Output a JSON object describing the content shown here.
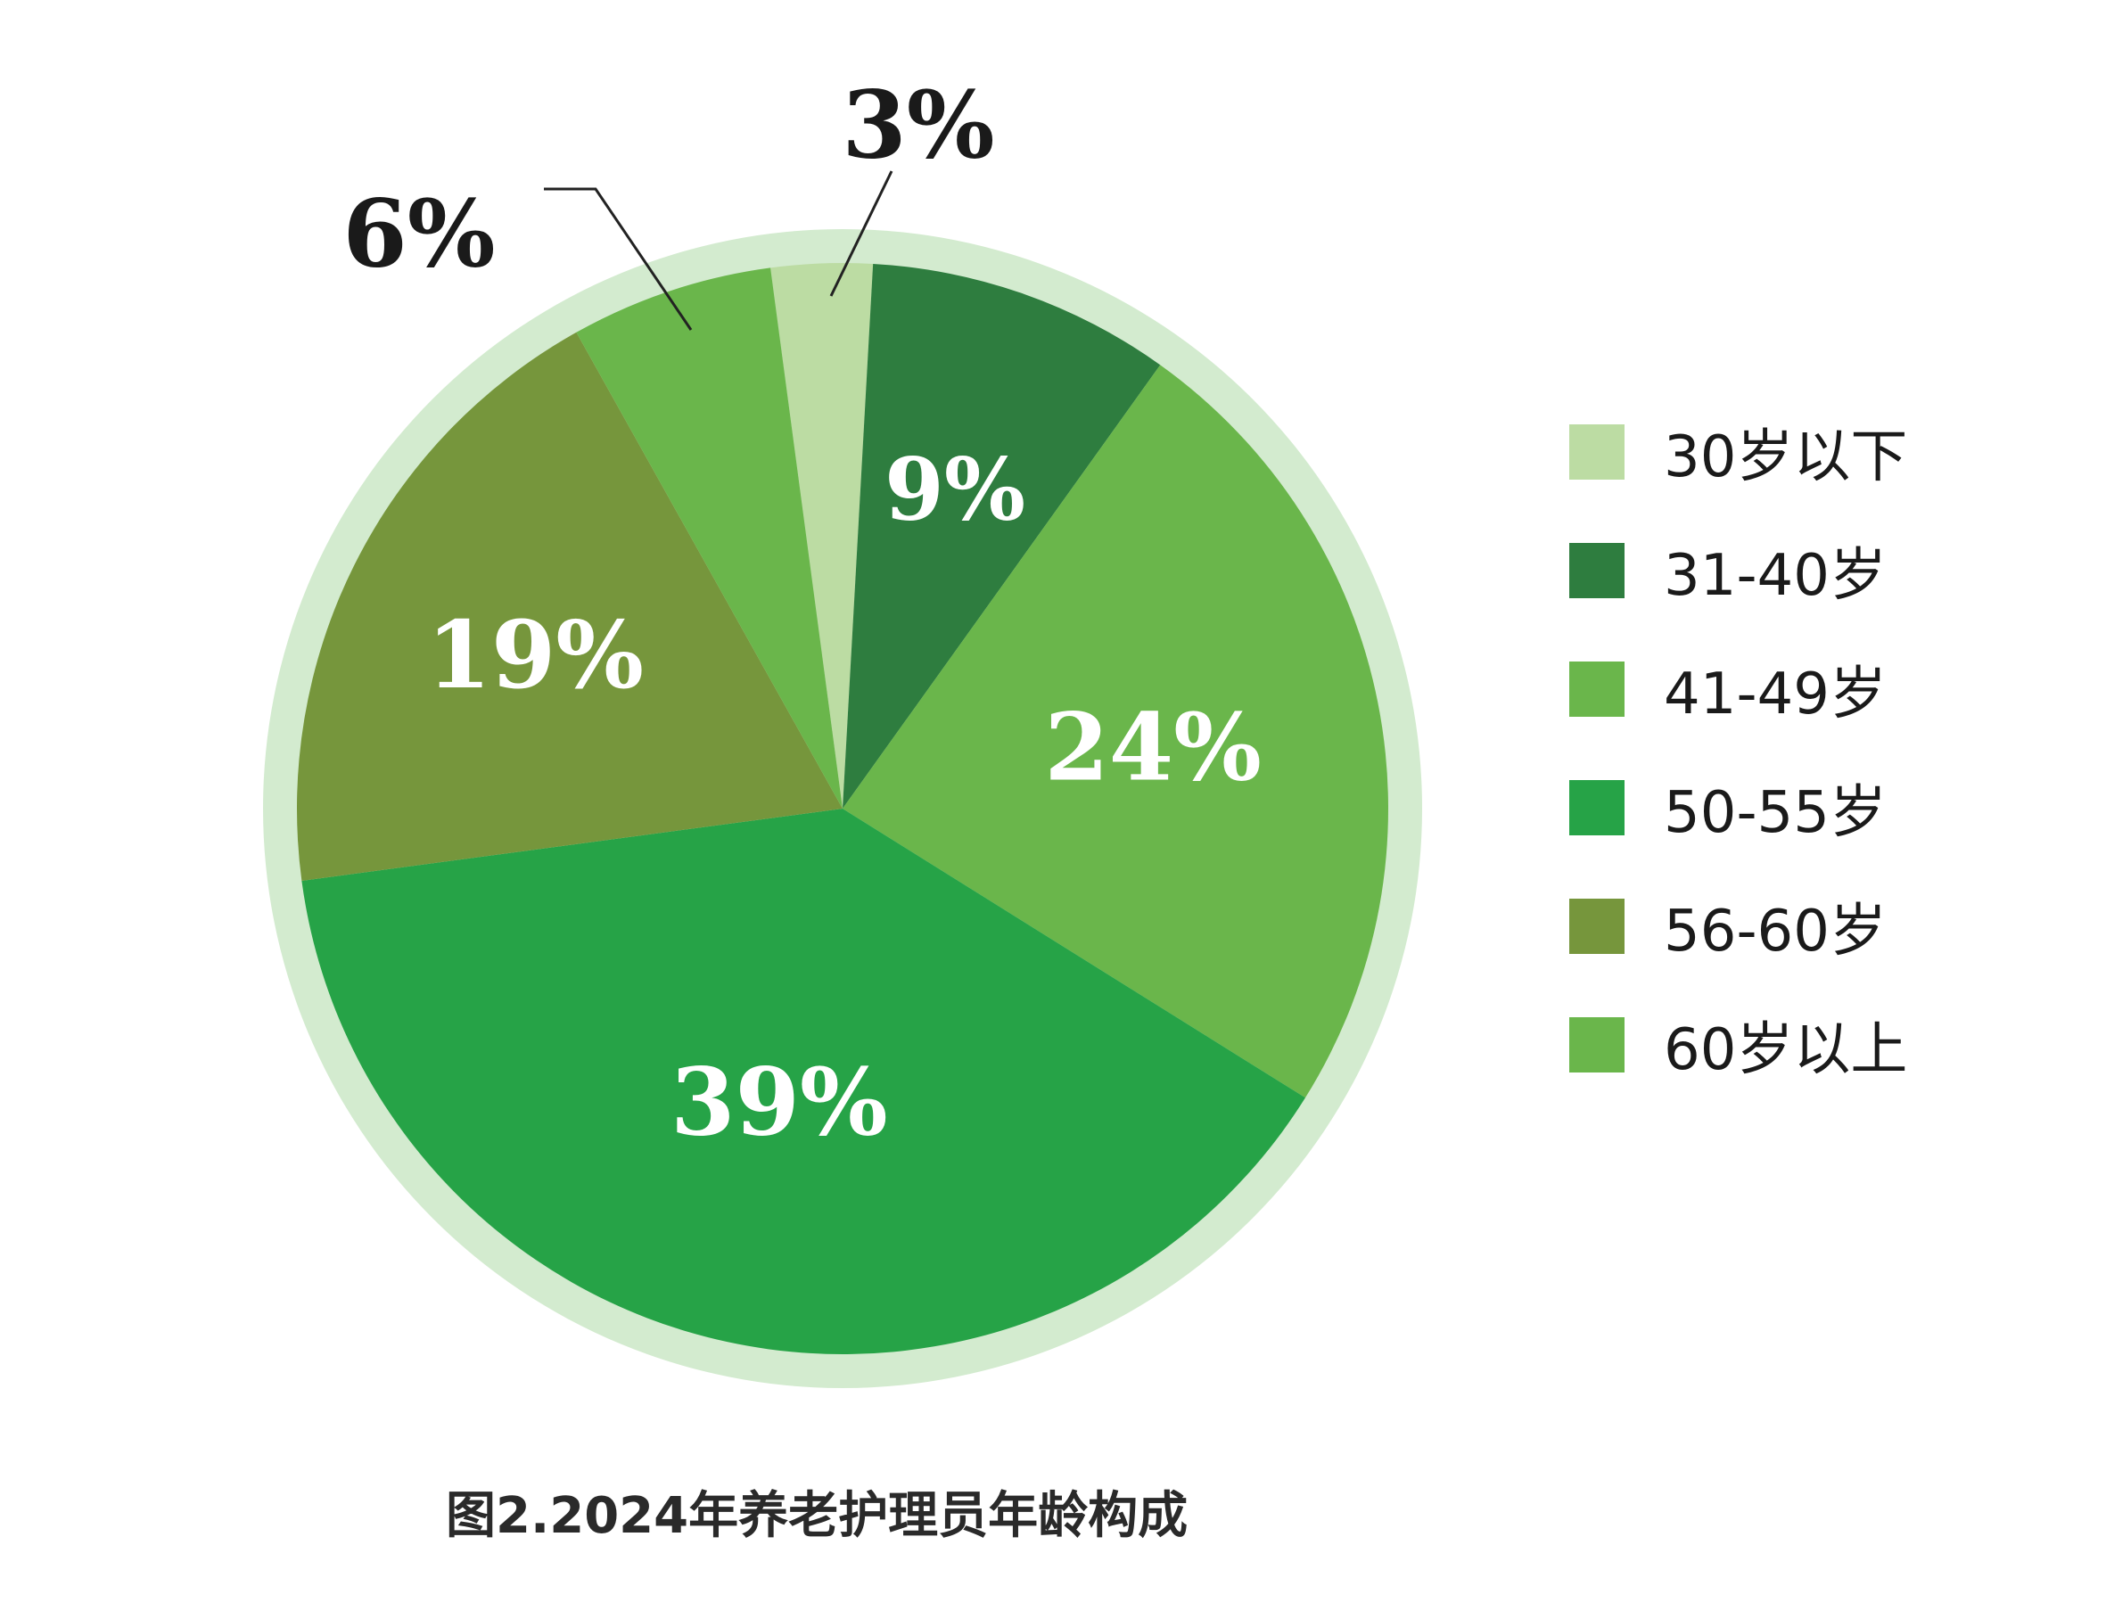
{
  "chart_data": {
    "type": "pie",
    "title": "图2.2024年养老护理员年龄构成",
    "unit": "%",
    "slices": [
      {
        "label": "30岁以下",
        "value": 3,
        "display": "3%",
        "color": "#bcdca3"
      },
      {
        "label": "31-40岁",
        "value": 9,
        "display": "9%",
        "color": "#2e7d3f"
      },
      {
        "label": "41-49岁",
        "value": 24,
        "display": "24%",
        "color": "#6ab64b"
      },
      {
        "label": "50-55岁",
        "value": 39,
        "display": "39%",
        "color": "#26a347"
      },
      {
        "label": "56-60岁",
        "value": 19,
        "display": "19%",
        "color": "#76963c"
      },
      {
        "label": "60岁以上",
        "value": 6,
        "display": "6%",
        "color": "#6ab64b"
      }
    ],
    "legend_position": "right",
    "outer_ring_color": "#d3ebcf"
  }
}
